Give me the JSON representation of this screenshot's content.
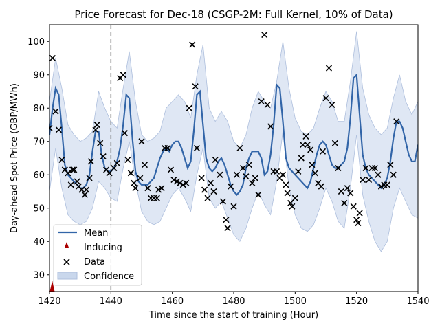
{
  "chart_data": {
    "type": "line",
    "title": "Price Forecast for Dec-18 (CSGP-2M: Full Kernel, 10% of Data)",
    "xlabel": "Time since the start of training (Hour)",
    "ylabel": "Day-ahead Spot Price (GBP/MWh)",
    "xlim": [
      1420,
      1540
    ],
    "ylim": [
      25,
      105
    ],
    "xticks": [
      1420,
      1440,
      1460,
      1480,
      1500,
      1520,
      1540
    ],
    "yticks": [
      30,
      40,
      50,
      60,
      70,
      80,
      90,
      100
    ],
    "vline_x": 1440,
    "colors": {
      "mean": "#3265a8",
      "confidence": "#c9d7ec",
      "confidence_edge": "#aebfdd",
      "inducing": "#aa0000",
      "data": "#000000",
      "vline": "#777777"
    },
    "legend": {
      "position": "lower-left",
      "entries": [
        "Mean",
        "Inducing",
        "Data",
        "Confidence"
      ]
    },
    "inducing_points": [
      {
        "x": 1420,
        "y": 25.5
      }
    ],
    "mean": {
      "x": [
        1420,
        1421,
        1422,
        1423,
        1424,
        1425,
        1426,
        1427,
        1428,
        1429,
        1430,
        1431,
        1432,
        1433,
        1434,
        1435,
        1436,
        1437,
        1438,
        1439,
        1440,
        1441,
        1442,
        1443,
        1444,
        1445,
        1446,
        1447,
        1448,
        1449,
        1450,
        1451,
        1452,
        1453,
        1454,
        1455,
        1456,
        1457,
        1458,
        1459,
        1460,
        1461,
        1462,
        1463,
        1464,
        1465,
        1466,
        1467,
        1468,
        1469,
        1470,
        1471,
        1472,
        1473,
        1474,
        1475,
        1476,
        1477,
        1478,
        1479,
        1480,
        1481,
        1482,
        1483,
        1484,
        1485,
        1486,
        1487,
        1488,
        1489,
        1490,
        1491,
        1492,
        1493,
        1494,
        1495,
        1496,
        1497,
        1498,
        1499,
        1500,
        1501,
        1502,
        1503,
        1504,
        1505,
        1506,
        1507,
        1508,
        1509,
        1510,
        1511,
        1512,
        1513,
        1514,
        1515,
        1516,
        1517,
        1518,
        1519,
        1520,
        1521,
        1522,
        1523,
        1524,
        1525,
        1526,
        1527,
        1528,
        1529,
        1530,
        1531,
        1532,
        1533,
        1534,
        1535,
        1536,
        1537,
        1538,
        1539,
        1540
      ],
      "values": [
        72,
        80,
        86,
        84,
        74,
        63,
        60,
        59,
        58,
        57,
        56,
        56,
        57,
        60,
        67,
        73,
        73,
        66,
        62,
        61,
        61,
        62,
        64,
        68,
        75,
        84,
        83,
        71,
        61,
        58,
        57,
        57,
        57,
        58,
        59,
        62,
        65,
        67,
        68,
        67,
        69,
        70,
        70,
        68,
        65,
        62,
        64,
        73,
        84,
        85,
        75,
        65,
        62,
        61,
        62,
        64,
        65,
        63,
        60,
        57,
        55,
        54,
        55,
        57,
        62,
        65,
        67,
        67,
        67,
        65,
        60,
        61,
        66,
        75,
        87,
        86,
        76,
        65,
        62,
        61,
        60,
        59,
        58,
        57,
        56,
        58,
        62,
        66,
        69,
        70,
        69,
        66,
        63,
        62,
        62,
        63,
        64,
        68,
        77,
        89,
        90,
        78,
        66,
        62,
        60,
        59,
        58,
        57,
        56,
        57,
        59,
        64,
        71,
        76,
        76,
        74,
        70,
        66,
        64,
        64,
        69
      ]
    },
    "confidence": {
      "x": [
        1420,
        1422,
        1424,
        1426,
        1428,
        1430,
        1432,
        1434,
        1436,
        1438,
        1440,
        1442,
        1444,
        1446,
        1448,
        1450,
        1452,
        1454,
        1456,
        1458,
        1460,
        1462,
        1464,
        1466,
        1468,
        1470,
        1472,
        1474,
        1476,
        1478,
        1480,
        1482,
        1484,
        1486,
        1488,
        1490,
        1492,
        1494,
        1496,
        1498,
        1500,
        1502,
        1504,
        1506,
        1508,
        1510,
        1512,
        1514,
        1516,
        1518,
        1520,
        1522,
        1524,
        1526,
        1528,
        1530,
        1532,
        1534,
        1536,
        1538,
        1540
      ],
      "upper": [
        82,
        95,
        86,
        75,
        72,
        70,
        71,
        73,
        85,
        80,
        76,
        74,
        86,
        97,
        82,
        72,
        70,
        71,
        73,
        80,
        82,
        84,
        82,
        77,
        90,
        99,
        80,
        76,
        79,
        76,
        70,
        68,
        72,
        80,
        85,
        82,
        80,
        88,
        100,
        86,
        77,
        73,
        72,
        74,
        80,
        85,
        82,
        76,
        76,
        88,
        103,
        86,
        78,
        74,
        72,
        74,
        83,
        90,
        82,
        78,
        82
      ],
      "lower": [
        55,
        68,
        56,
        48,
        46,
        45,
        46,
        50,
        58,
        56,
        53,
        52,
        62,
        70,
        58,
        49,
        46,
        45,
        46,
        50,
        54,
        56,
        53,
        49,
        60,
        68,
        53,
        50,
        52,
        47,
        42,
        40,
        44,
        50,
        55,
        51,
        48,
        58,
        73,
        56,
        48,
        44,
        43,
        45,
        50,
        56,
        52,
        46,
        44,
        56,
        72,
        54,
        46,
        40,
        37,
        40,
        50,
        56,
        52,
        48,
        47
      ]
    },
    "points": [
      {
        "x": 1420,
        "y": 74
      },
      {
        "x": 1421,
        "y": 95
      },
      {
        "x": 1422,
        "y": 79
      },
      {
        "x": 1423,
        "y": 73.5
      },
      {
        "x": 1424,
        "y": 64.5
      },
      {
        "x": 1425,
        "y": 61.5
      },
      {
        "x": 1426,
        "y": 60.5
      },
      {
        "x": 1427,
        "y": 57
      },
      {
        "x": 1427.5,
        "y": 61.5
      },
      {
        "x": 1428,
        "y": 61.5
      },
      {
        "x": 1429,
        "y": 58
      },
      {
        "x": 1429.5,
        "y": 56.5
      },
      {
        "x": 1430.5,
        "y": 55.5
      },
      {
        "x": 1431.5,
        "y": 54
      },
      {
        "x": 1432,
        "y": 55.5
      },
      {
        "x": 1433,
        "y": 59
      },
      {
        "x": 1433.5,
        "y": 64
      },
      {
        "x": 1435,
        "y": 73.5
      },
      {
        "x": 1435.5,
        "y": 75
      },
      {
        "x": 1436.5,
        "y": 69.5
      },
      {
        "x": 1437.5,
        "y": 65.5
      },
      {
        "x": 1438.5,
        "y": 61.5
      },
      {
        "x": 1439.5,
        "y": 60.5
      },
      {
        "x": 1441,
        "y": 62
      },
      {
        "x": 1442,
        "y": 63.5
      },
      {
        "x": 1443,
        "y": 89
      },
      {
        "x": 1444,
        "y": 90
      },
      {
        "x": 1444.5,
        "y": 72.5
      },
      {
        "x": 1445.5,
        "y": 64.5
      },
      {
        "x": 1446.5,
        "y": 60.5
      },
      {
        "x": 1447.5,
        "y": 57.5
      },
      {
        "x": 1448,
        "y": 56
      },
      {
        "x": 1449.5,
        "y": 59
      },
      {
        "x": 1450,
        "y": 70
      },
      {
        "x": 1451,
        "y": 63
      },
      {
        "x": 1452,
        "y": 56
      },
      {
        "x": 1453,
        "y": 53
      },
      {
        "x": 1454,
        "y": 53
      },
      {
        "x": 1455,
        "y": 53
      },
      {
        "x": 1455.5,
        "y": 55.5
      },
      {
        "x": 1456.5,
        "y": 56
      },
      {
        "x": 1457.5,
        "y": 68
      },
      {
        "x": 1458.5,
        "y": 68
      },
      {
        "x": 1459.5,
        "y": 61.5
      },
      {
        "x": 1460.5,
        "y": 58.5
      },
      {
        "x": 1461.5,
        "y": 58
      },
      {
        "x": 1462.5,
        "y": 57.5
      },
      {
        "x": 1463.5,
        "y": 57
      },
      {
        "x": 1464.5,
        "y": 57.5
      },
      {
        "x": 1465.5,
        "y": 80
      },
      {
        "x": 1466.5,
        "y": 99
      },
      {
        "x": 1467.5,
        "y": 86.5
      },
      {
        "x": 1468,
        "y": 68
      },
      {
        "x": 1469.5,
        "y": 59
      },
      {
        "x": 1470.5,
        "y": 55.5
      },
      {
        "x": 1471.5,
        "y": 53
      },
      {
        "x": 1472.5,
        "y": 57.5
      },
      {
        "x": 1473.5,
        "y": 55
      },
      {
        "x": 1474,
        "y": 64.5
      },
      {
        "x": 1475.5,
        "y": 60
      },
      {
        "x": 1476.5,
        "y": 52
      },
      {
        "x": 1477.5,
        "y": 46.5
      },
      {
        "x": 1478,
        "y": 44
      },
      {
        "x": 1479,
        "y": 56.5
      },
      {
        "x": 1480,
        "y": 50.5
      },
      {
        "x": 1481,
        "y": 60
      },
      {
        "x": 1482,
        "y": 68
      },
      {
        "x": 1483,
        "y": 62
      },
      {
        "x": 1484,
        "y": 59.5
      },
      {
        "x": 1485,
        "y": 63
      },
      {
        "x": 1486,
        "y": 57.5
      },
      {
        "x": 1487,
        "y": 59
      },
      {
        "x": 1488,
        "y": 54
      },
      {
        "x": 1489,
        "y": 82
      },
      {
        "x": 1490,
        "y": 102
      },
      {
        "x": 1491,
        "y": 81
      },
      {
        "x": 1492,
        "y": 74.5
      },
      {
        "x": 1493,
        "y": 61
      },
      {
        "x": 1494,
        "y": 61
      },
      {
        "x": 1495,
        "y": 59
      },
      {
        "x": 1496,
        "y": 60
      },
      {
        "x": 1497,
        "y": 57
      },
      {
        "x": 1497.5,
        "y": 54.5
      },
      {
        "x": 1498.5,
        "y": 51.5
      },
      {
        "x": 1499,
        "y": 50.5
      },
      {
        "x": 1500,
        "y": 53
      },
      {
        "x": 1501,
        "y": 61
      },
      {
        "x": 1502,
        "y": 65
      },
      {
        "x": 1502.5,
        "y": 69
      },
      {
        "x": 1503.5,
        "y": 71.5
      },
      {
        "x": 1504,
        "y": 69
      },
      {
        "x": 1505,
        "y": 67.5
      },
      {
        "x": 1505.5,
        "y": 63
      },
      {
        "x": 1506.5,
        "y": 60.5
      },
      {
        "x": 1507.5,
        "y": 57.5
      },
      {
        "x": 1508.5,
        "y": 56.5
      },
      {
        "x": 1509,
        "y": 67
      },
      {
        "x": 1510,
        "y": 83
      },
      {
        "x": 1511,
        "y": 92
      },
      {
        "x": 1512,
        "y": 81
      },
      {
        "x": 1513,
        "y": 69.5
      },
      {
        "x": 1514,
        "y": 62
      },
      {
        "x": 1515,
        "y": 55
      },
      {
        "x": 1516,
        "y": 51.5
      },
      {
        "x": 1517,
        "y": 56
      },
      {
        "x": 1518,
        "y": 54.5
      },
      {
        "x": 1519,
        "y": 50.5
      },
      {
        "x": 1520,
        "y": 46.5
      },
      {
        "x": 1520.5,
        "y": 45.5
      },
      {
        "x": 1521,
        "y": 48.5
      },
      {
        "x": 1522,
        "y": 58.5
      },
      {
        "x": 1523,
        "y": 62
      },
      {
        "x": 1524,
        "y": 58.5
      },
      {
        "x": 1525,
        "y": 62
      },
      {
        "x": 1526,
        "y": 62
      },
      {
        "x": 1527,
        "y": 60
      },
      {
        "x": 1528,
        "y": 56.5
      },
      {
        "x": 1529,
        "y": 57
      },
      {
        "x": 1530,
        "y": 57
      },
      {
        "x": 1531,
        "y": 63
      },
      {
        "x": 1532,
        "y": 60
      },
      {
        "x": 1533,
        "y": 76
      }
    ]
  }
}
